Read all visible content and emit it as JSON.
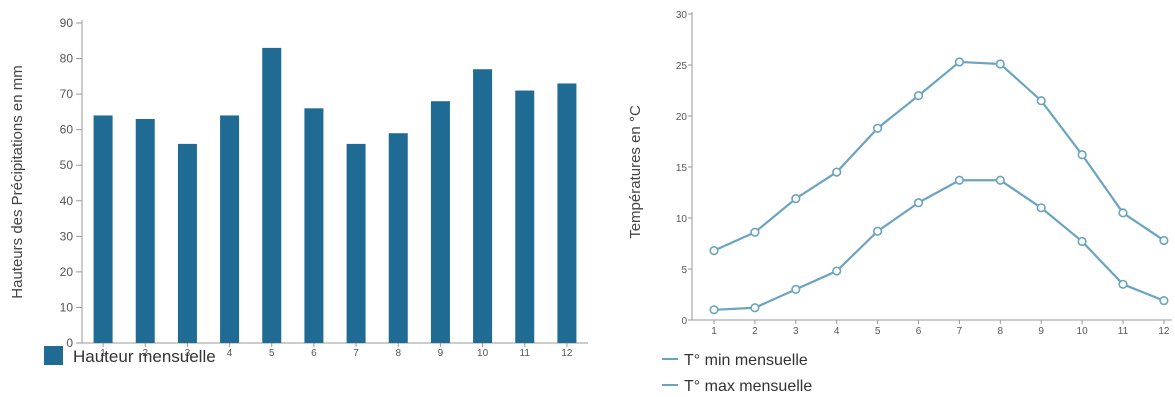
{
  "chart_data": [
    {
      "type": "bar",
      "categories": [
        "1",
        "2",
        "3",
        "4",
        "5",
        "6",
        "7",
        "8",
        "9",
        "10",
        "11",
        "12"
      ],
      "values": [
        64,
        63,
        56,
        64,
        83,
        66,
        56,
        59,
        68,
        77,
        71,
        73
      ],
      "ylabel": "Hauteurs des Précipitations en mm",
      "ylim": [
        0,
        90
      ],
      "yticks": [
        0,
        10,
        20,
        30,
        40,
        50,
        60,
        70,
        80,
        90
      ],
      "legend": [
        {
          "label": "Hauteur mensuelle",
          "color": "#1f6b94"
        }
      ],
      "legend_position": "bottom-left",
      "grid": false,
      "bar_color": "#1f6b94"
    },
    {
      "type": "line",
      "x": [
        1,
        2,
        3,
        4,
        5,
        6,
        7,
        8,
        9,
        10,
        11,
        12
      ],
      "series": [
        {
          "name": "T° min mensuelle",
          "values": [
            1.0,
            1.2,
            3.0,
            4.8,
            8.7,
            11.5,
            13.7,
            13.7,
            11.0,
            7.7,
            3.5,
            1.9
          ],
          "color": "#6aa4c0"
        },
        {
          "name": "T° max mensuelle",
          "values": [
            6.8,
            8.6,
            11.9,
            14.5,
            18.8,
            22.0,
            25.3,
            25.1,
            21.5,
            16.2,
            10.5,
            7.8
          ],
          "color": "#6aa4c0"
        }
      ],
      "ylabel": "Températures en °C",
      "ylim": [
        0,
        30
      ],
      "yticks": [
        0,
        5,
        10,
        15,
        20,
        25,
        30
      ],
      "legend_position": "bottom-left",
      "grid": false
    }
  ]
}
